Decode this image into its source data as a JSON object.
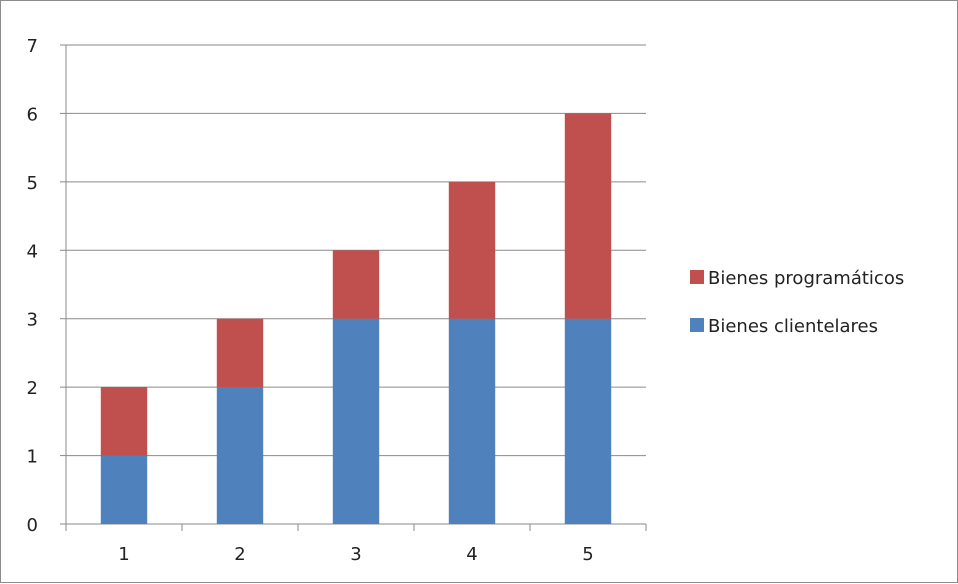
{
  "chart_data": {
    "type": "bar",
    "stacked": true,
    "categories": [
      "1",
      "2",
      "3",
      "4",
      "5"
    ],
    "series": [
      {
        "name": "Bienes clientelares",
        "values": [
          1,
          2,
          3,
          3,
          3
        ],
        "color": "#4f81bd"
      },
      {
        "name": "Bienes programáticos",
        "values": [
          1,
          1,
          1,
          2,
          3
        ],
        "color": "#c0504d"
      }
    ],
    "y_ticks": [
      "0",
      "1",
      "2",
      "3",
      "4",
      "5",
      "6",
      "7"
    ],
    "ylim": [
      0,
      7
    ],
    "grid": true,
    "legend_placement": "right",
    "legend_order": [
      "Bienes programáticos",
      "Bienes clientelares"
    ]
  }
}
